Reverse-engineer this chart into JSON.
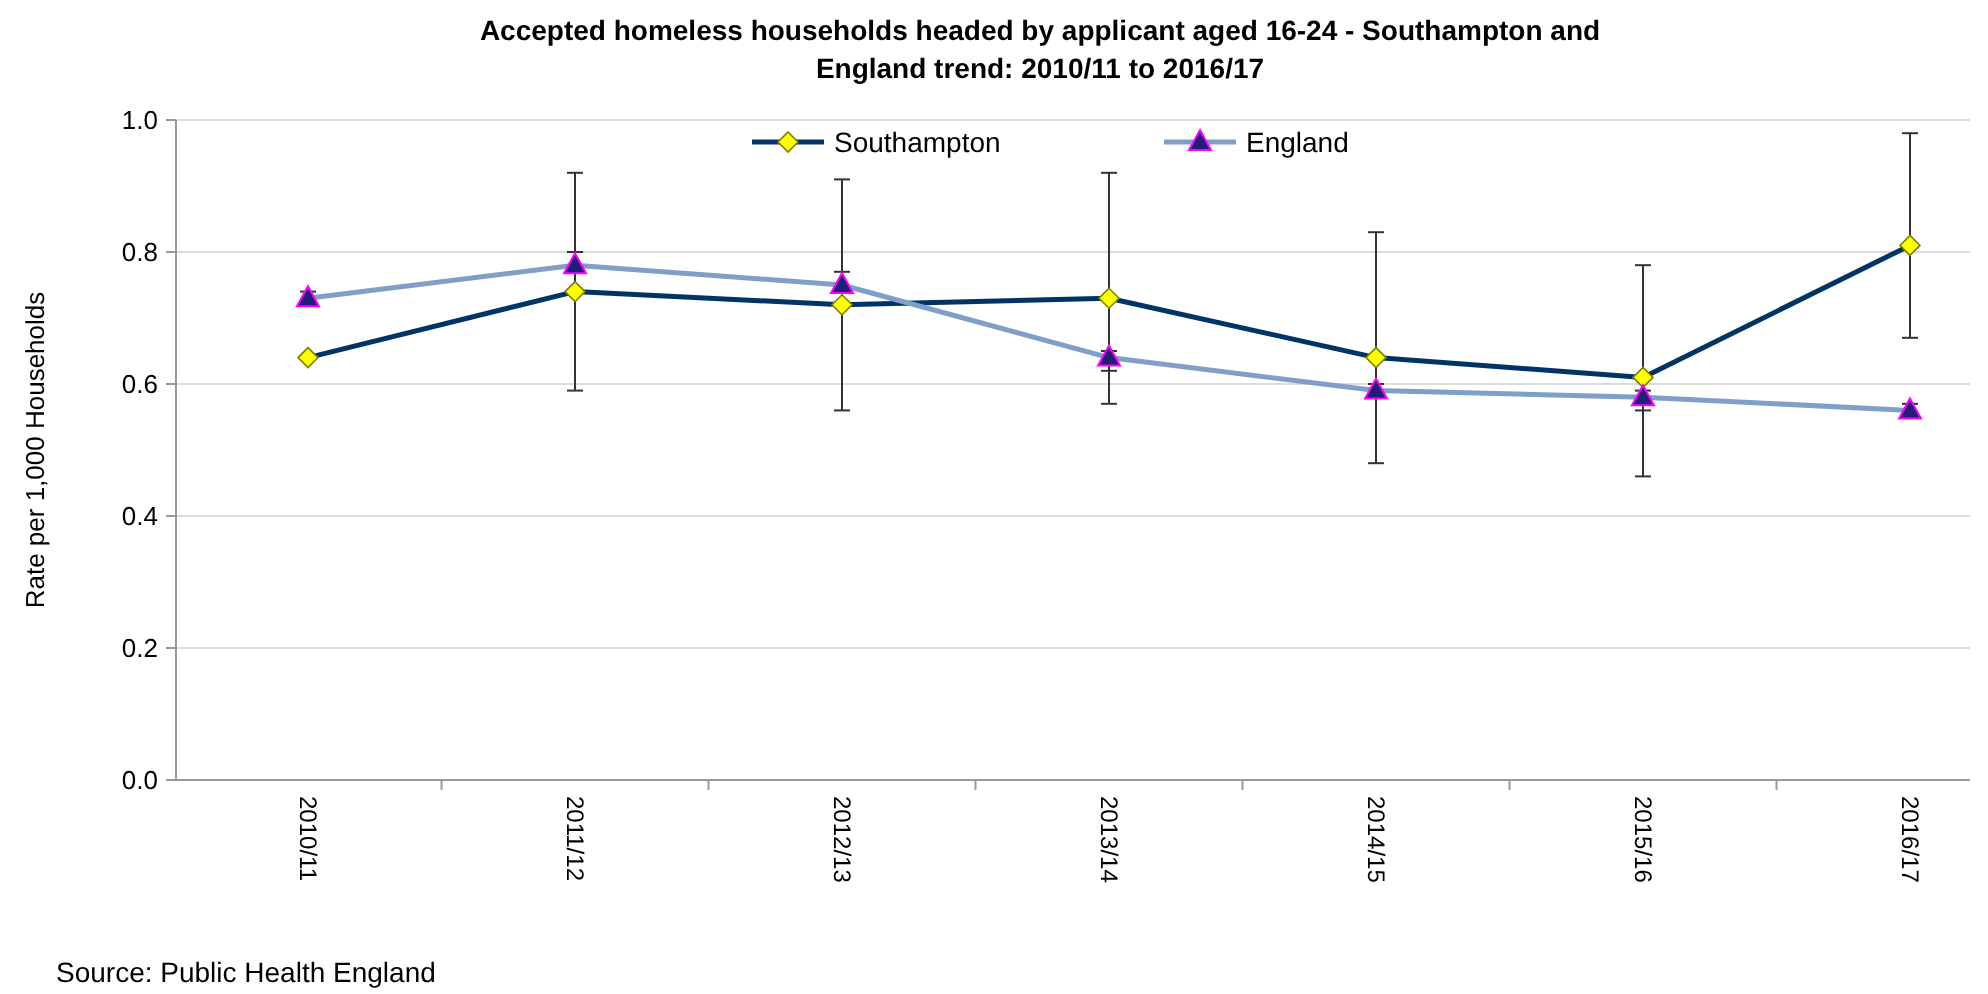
{
  "chart_data": {
    "type": "line",
    "title": "Accepted homeless households headed by applicant aged 16-24 -  Southampton and England trend: 2010/11 to  2016/17",
    "ylabel": "Rate per 1,000 Households",
    "annotations": [
      "Source: Public Health England"
    ],
    "categories": [
      "2010/11",
      "2011/12",
      "2012/13",
      "2013/14",
      "2014/15",
      "2015/16",
      "2016/17"
    ],
    "ylim": [
      0,
      1
    ],
    "yticks": [
      {
        "value": 0,
        "label": "0.0"
      },
      {
        "value": 0.2,
        "label": "0.2"
      },
      {
        "value": 0.4,
        "label": "0.4"
      },
      {
        "value": 0.6,
        "label": "0.6"
      },
      {
        "value": 0.8,
        "label": "0.8"
      },
      {
        "value": 1,
        "label": "1.0"
      }
    ],
    "grid": "y",
    "legend": "top",
    "series": [
      {
        "name": "Southampton",
        "color": "#003366",
        "marker": "diamond",
        "values": [
          0.64,
          0.74,
          0.72,
          0.73,
          0.64,
          0.61,
          0.81
        ],
        "errors": [
          null,
          [
            0.59,
            0.92
          ],
          [
            0.56,
            0.91
          ],
          [
            0.57,
            0.92
          ],
          [
            0.48,
            0.83
          ],
          [
            0.46,
            0.78
          ],
          [
            0.67,
            0.98
          ]
        ]
      },
      {
        "name": "England",
        "color": "#7f9fc8",
        "marker": "triangle",
        "values": [
          0.73,
          0.78,
          0.75,
          0.64,
          0.59,
          0.58,
          0.56
        ],
        "errors": [
          [
            0.72,
            0.74
          ],
          [
            0.77,
            0.8
          ],
          [
            0.74,
            0.77
          ],
          [
            0.62,
            0.65
          ],
          [
            0.58,
            0.6
          ],
          [
            0.56,
            0.59
          ],
          [
            0.55,
            0.57
          ]
        ]
      }
    ]
  }
}
